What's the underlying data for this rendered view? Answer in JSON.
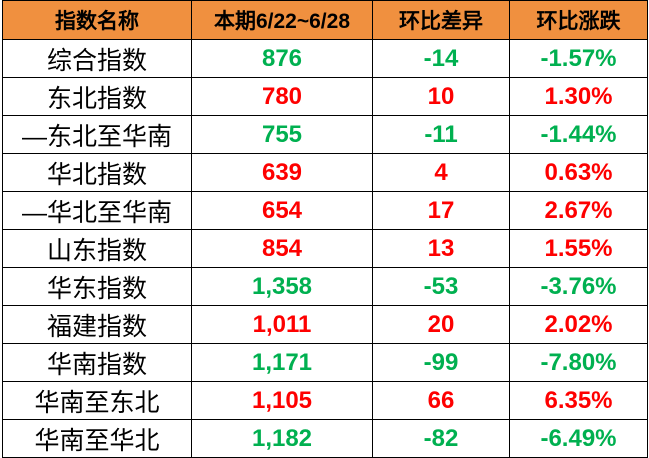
{
  "chart_data": {
    "type": "table",
    "columns": [
      "指数名称",
      "本期6/22~6/28",
      "环比差异",
      "环比涨跌"
    ],
    "rows": [
      {
        "name": "综合指数",
        "current": "876",
        "diff": "-14",
        "pct": "-1.57%",
        "trend": "down"
      },
      {
        "name": "东北指数",
        "current": "780",
        "diff": "10",
        "pct": "1.30%",
        "trend": "up"
      },
      {
        "name": "—东北至华南",
        "current": "755",
        "diff": "-11",
        "pct": "-1.44%",
        "trend": "down"
      },
      {
        "name": "华北指数",
        "current": "639",
        "diff": "4",
        "pct": "0.63%",
        "trend": "up"
      },
      {
        "name": "—华北至华南",
        "current": "654",
        "diff": "17",
        "pct": "2.67%",
        "trend": "up"
      },
      {
        "name": "山东指数",
        "current": "854",
        "diff": "13",
        "pct": "1.55%",
        "trend": "up"
      },
      {
        "name": "华东指数",
        "current": "1,358",
        "diff": "-53",
        "pct": "-3.76%",
        "trend": "down"
      },
      {
        "name": "福建指数",
        "current": "1,011",
        "diff": "20",
        "pct": "2.02%",
        "trend": "up"
      },
      {
        "name": "华南指数",
        "current": "1,171",
        "diff": "-99",
        "pct": "-7.80%",
        "trend": "down"
      },
      {
        "name": "华南至东北",
        "current": "1,105",
        "diff": "66",
        "pct": "6.35%",
        "trend": "up"
      },
      {
        "name": "华南至华北",
        "current": "1,182",
        "diff": "-82",
        "pct": "-6.49%",
        "trend": "down"
      }
    ]
  },
  "colors": {
    "header_bg": "#F0903F",
    "up": "#FE0000",
    "down": "#00B050",
    "border": "#000000",
    "label_text": "#000000"
  }
}
